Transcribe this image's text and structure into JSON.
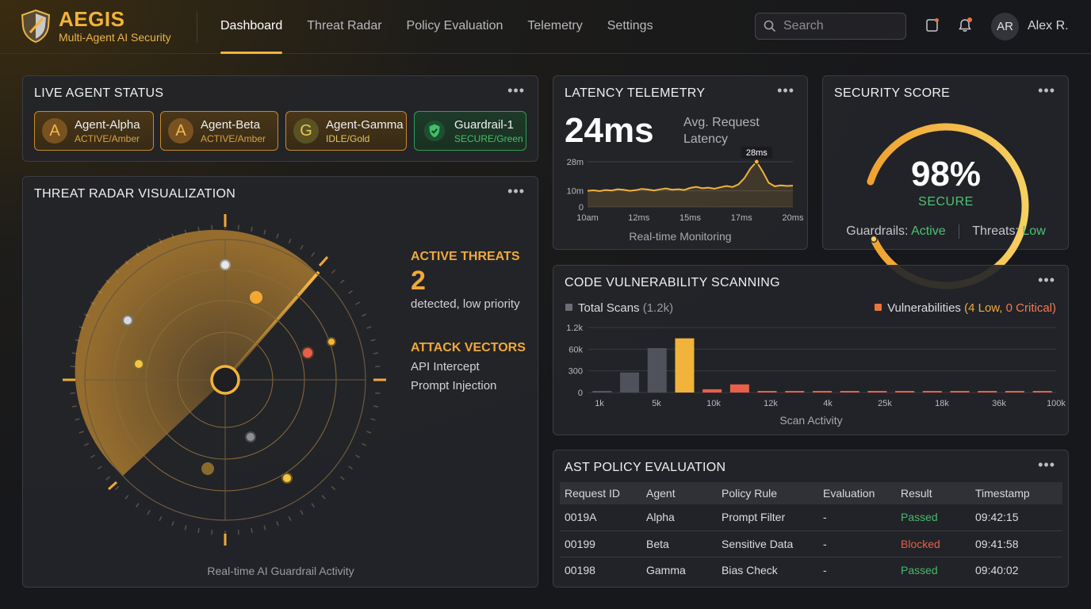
{
  "brand": {
    "name": "AEGIS",
    "subtitle": "Multi-Agent AI Security"
  },
  "nav": {
    "items": [
      {
        "label": "Dashboard",
        "active": true
      },
      {
        "label": "Threat Radar",
        "active": false
      },
      {
        "label": "Policy Evaluation",
        "active": false
      },
      {
        "label": "Telemetry",
        "active": false
      },
      {
        "label": "Settings",
        "active": false
      }
    ]
  },
  "search": {
    "placeholder": "Search",
    "value": ""
  },
  "user": {
    "initials": "AR",
    "name": "Alex R."
  },
  "agent_status": {
    "title": "LIVE AGENT STATUS",
    "agents": [
      {
        "initial": "A",
        "name": "Agent-Alpha",
        "status": "ACTIVE/Amber"
      },
      {
        "initial": "A",
        "name": "Agent-Beta",
        "status": "ACTIVE/Amber"
      },
      {
        "initial": "G",
        "name": "Agent-Gamma",
        "status": "IDLE/Gold"
      },
      {
        "initial": "",
        "name": "Guardrail-1",
        "status": "SECURE/Green"
      }
    ]
  },
  "radar": {
    "title": "THREAT RADAR VISUALIZATION",
    "caption": "Real-time AI Guardrail Activity",
    "active_threats_label": "ACTIVE THREATS",
    "active_threats_count": "2",
    "active_threats_desc": "detected, low priority",
    "attack_vectors_label": "ATTACK VECTORS",
    "attack_vectors": [
      "API Intercept",
      "Prompt Injection"
    ]
  },
  "latency": {
    "title": "LATENCY TELEMETRY",
    "value": "24ms",
    "desc": "Avg. Request Latency",
    "caption": "Real-time Monitoring",
    "peak_label": "28ms"
  },
  "security": {
    "title": "SECURITY SCORE",
    "score": "98%",
    "score_value": 98,
    "status": "SECURE",
    "guardrails_label": "Guardrails:",
    "guardrails_value": "Active",
    "threats_label": "Threats:",
    "threats_value": "Low"
  },
  "vuln": {
    "title": "CODE VULNERABILITY SCANNING",
    "legend_total": "Total Scans",
    "legend_total_count": "(1.2k)",
    "legend_vuln": "Vulnerabilities",
    "legend_vuln_low": "(4 Low,",
    "legend_vuln_critical": "0 Critical)",
    "caption": "Scan Activity"
  },
  "policy": {
    "title": "AST POLICY EVALUATION",
    "columns": [
      "Request ID",
      "Agent",
      "Policy Rule",
      "Evaluation",
      "Result",
      "Timestamp"
    ],
    "rows": [
      [
        "0019A",
        "Alpha",
        "Prompt Filter",
        "-",
        "Passed",
        "09:42:15"
      ],
      [
        "00199",
        "Beta",
        "Sensitive Data",
        "-",
        "Blocked",
        "09:41:58"
      ],
      [
        "00198",
        "Gamma",
        "Bias Check",
        "-",
        "Passed",
        "09:40:02"
      ]
    ]
  },
  "colors": {
    "accent": "#f2b33a",
    "green": "#47b86a",
    "red": "#e8604a",
    "gray_bar": "#4a4d55",
    "vuln_bar": "#e8604a"
  },
  "chart_data": [
    {
      "type": "line",
      "x_tick_labels": [
        "10am",
        "12ms",
        "15ms",
        "17ms",
        "20ms"
      ],
      "y_tick_labels": [
        "28m",
        "10m",
        "0"
      ],
      "ylim": [
        0,
        28
      ],
      "series": [
        {
          "values": [
            10,
            10.3,
            9.8,
            10.5,
            10.2,
            11,
            10.6,
            10,
            10.4,
            11.2,
            10.8,
            10.2,
            10.9,
            11.5,
            10.7,
            11,
            10.5,
            11.8,
            12.5,
            11.6,
            12,
            11.3,
            12.2,
            13,
            12.4,
            14,
            18,
            24,
            28,
            22,
            15,
            12.8,
            13.4,
            13,
            13.2
          ]
        }
      ],
      "peak_label": "28ms"
    },
    {
      "type": "bar",
      "x_tick_labels": [
        "1k",
        "5k",
        "10k",
        "12k",
        "4k",
        "25k",
        "18k",
        "36k",
        "100k"
      ],
      "y_tick_labels": [
        "1.2k",
        "60k",
        "300",
        "0"
      ],
      "ylim": [
        0,
        1.2
      ],
      "series": [
        {
          "values": [
            0,
            0.37,
            0.82,
            1.0,
            0,
            0,
            0,
            0,
            0,
            0,
            0,
            0,
            0,
            0,
            0,
            0,
            0
          ]
        },
        {
          "values": [
            0,
            0,
            0,
            0,
            0.06,
            0.15,
            0.02,
            0.02,
            0.02,
            0.02,
            0.02,
            0.02,
            0.02,
            0.02,
            0.02,
            0.02,
            0.02
          ]
        }
      ]
    }
  ]
}
